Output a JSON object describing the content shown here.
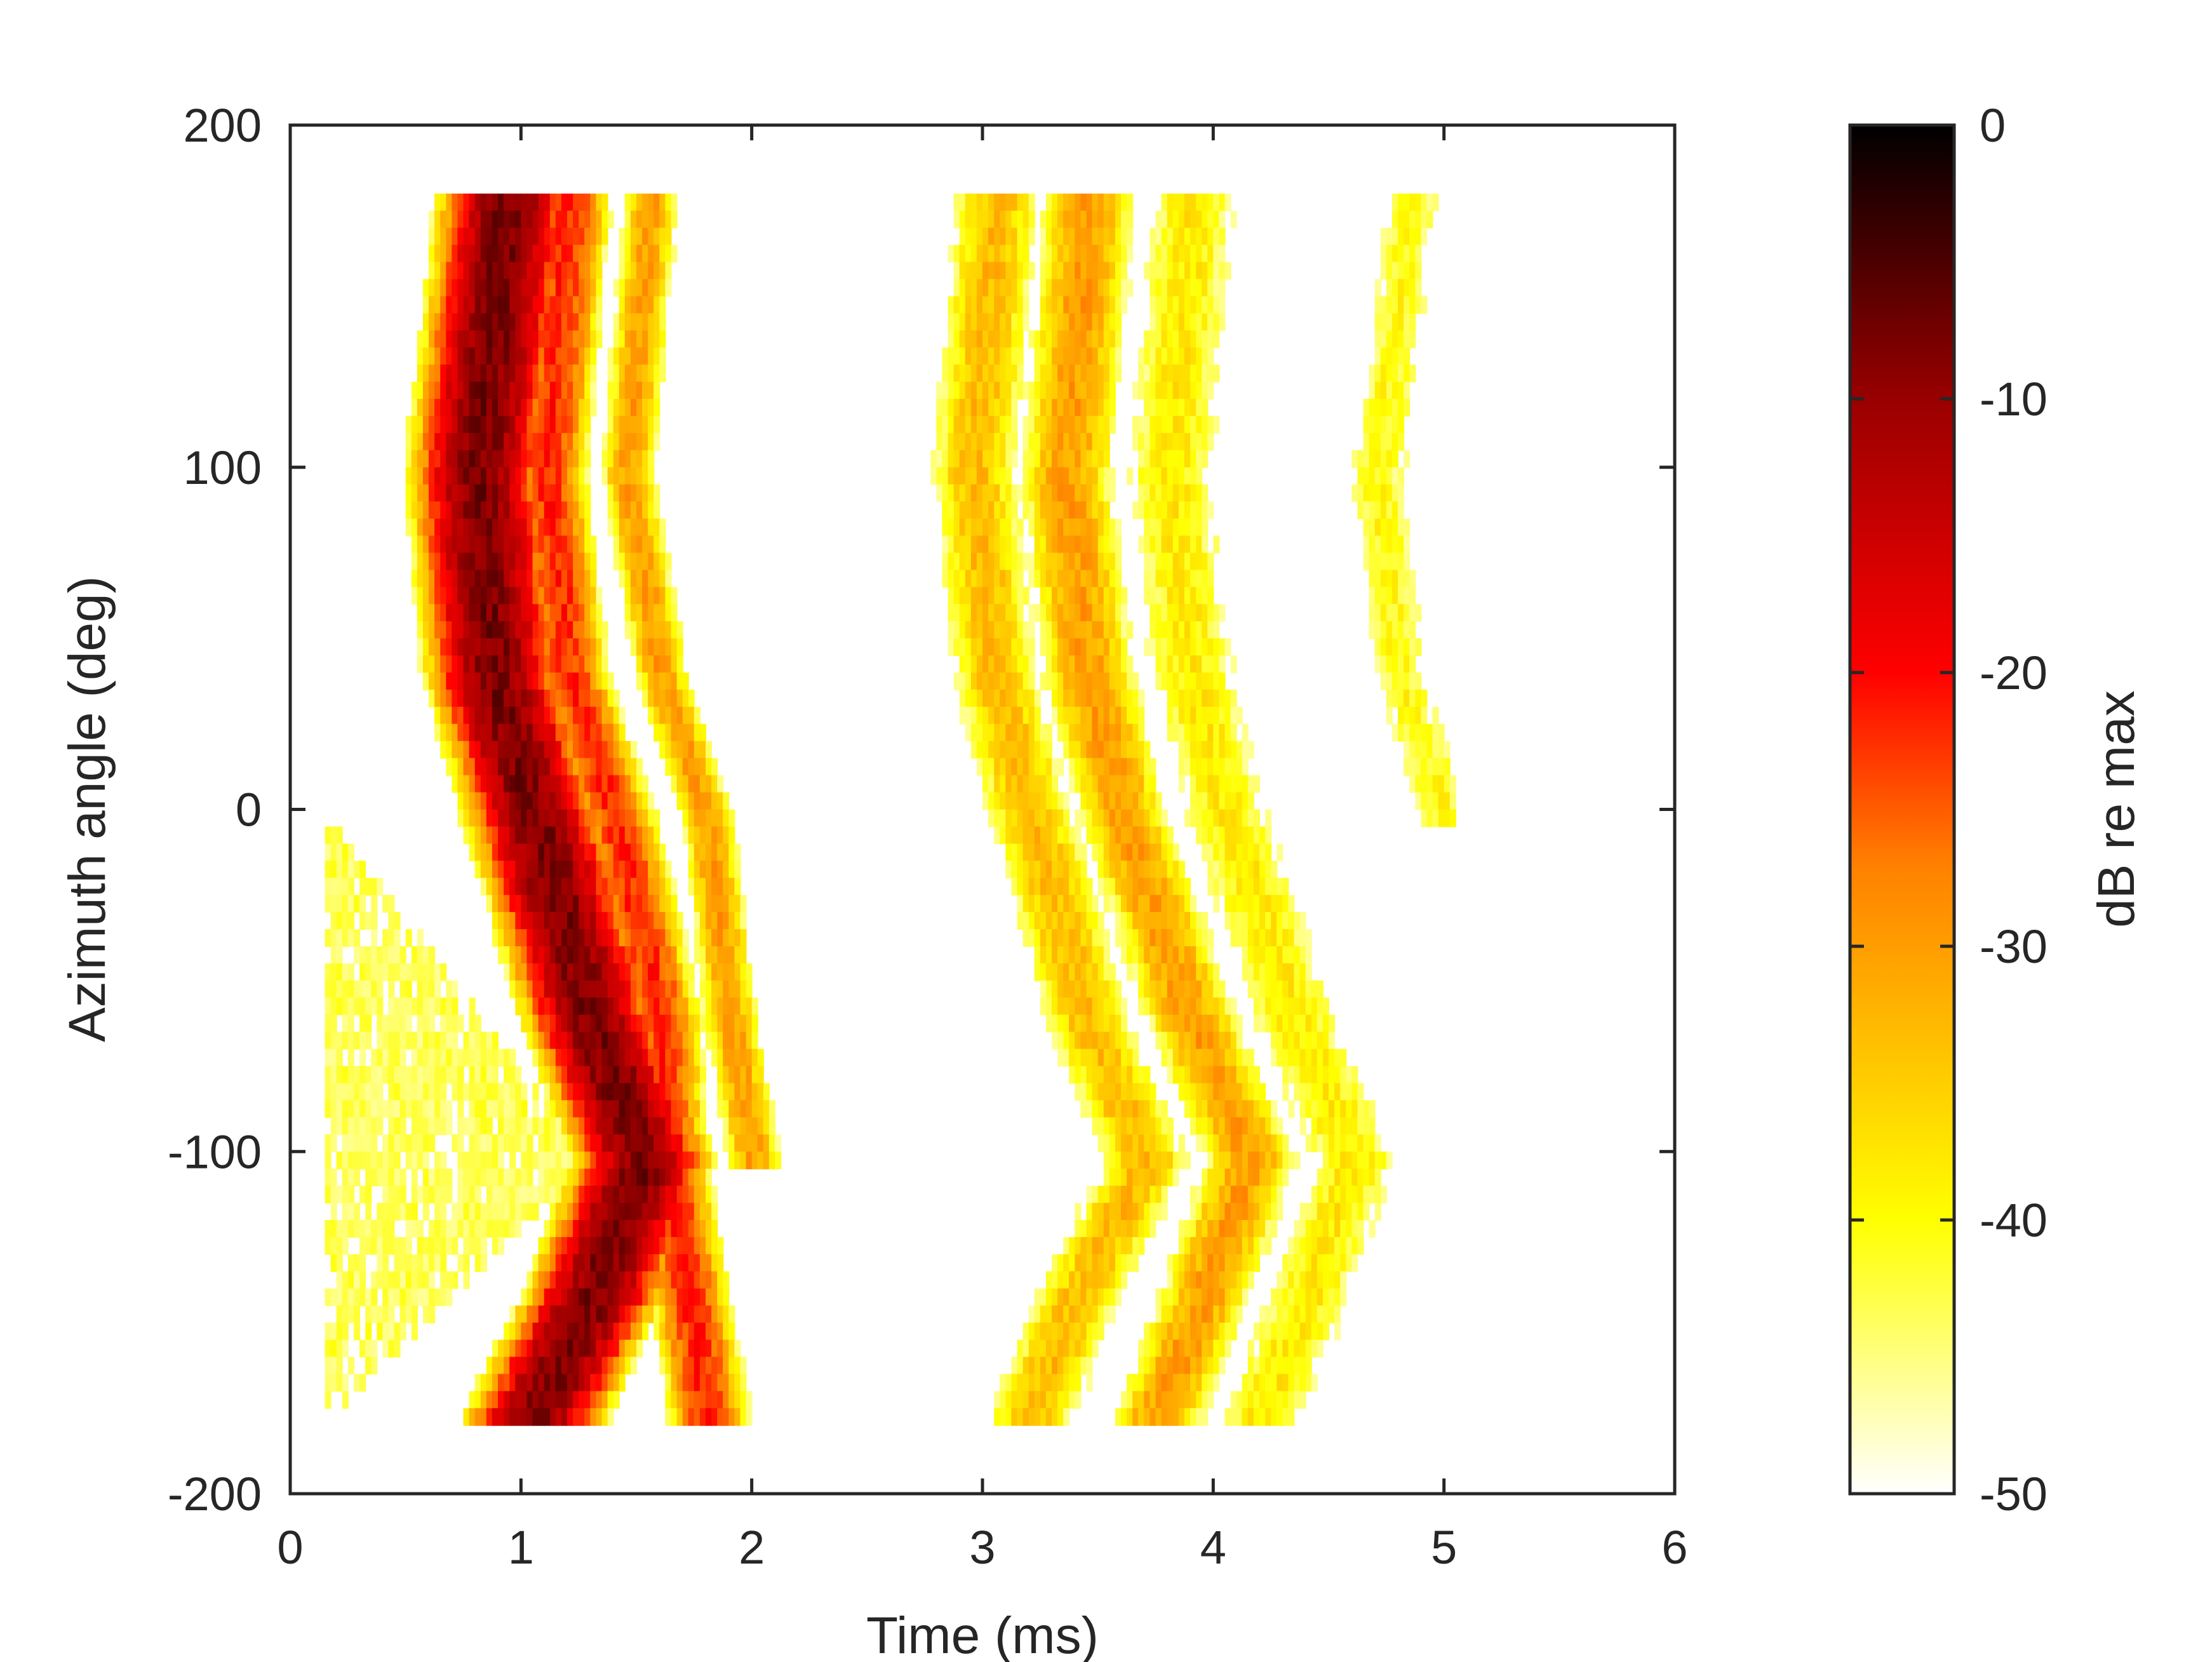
{
  "chart_data": {
    "type": "heatmap",
    "title": "",
    "xlabel": "Time (ms)",
    "ylabel": "Azimuth angle (deg)",
    "xlim": [
      0,
      6
    ],
    "ylim": [
      -200,
      200
    ],
    "xticks": [
      0,
      1,
      2,
      3,
      4,
      5,
      6
    ],
    "yticks": [
      -200,
      -100,
      0,
      100,
      200
    ],
    "xtick_labels": [
      "0",
      "1",
      "2",
      "3",
      "4",
      "5",
      "6"
    ],
    "ytick_labels": [
      "-200",
      "-100",
      "0",
      "100",
      "200"
    ],
    "grid": false,
    "data_extent": {
      "time_ms": [
        0.15,
        5.05
      ],
      "azimuth_deg": [
        -175,
        180
      ]
    },
    "colorbar": {
      "label": "dB re max",
      "range": [
        -50,
        0
      ],
      "ticks": [
        0,
        -10,
        -20,
        -30,
        -40,
        -50
      ],
      "tick_labels": [
        "0",
        "-10",
        "-20",
        "-30",
        "-40",
        "-50"
      ],
      "colormap": "hot",
      "stops": [
        {
          "value": -50,
          "color": "#ffffff"
        },
        {
          "value": -40,
          "color": "#ffff00"
        },
        {
          "value": -27,
          "color": "#ff8000"
        },
        {
          "value": -20,
          "color": "#ff0000"
        },
        {
          "value": -10,
          "color": "#990000"
        },
        {
          "value": 0,
          "color": "#000000"
        }
      ]
    },
    "features": [
      {
        "name": "direct wavefront",
        "points": [
          [
            0.93,
            180
          ],
          [
            0.8,
            100
          ],
          [
            0.88,
            40
          ],
          [
            1.05,
            0
          ],
          [
            1.3,
            -60
          ],
          [
            1.52,
            -100
          ],
          [
            1.3,
            -140
          ],
          [
            1.05,
            -175
          ]
        ],
        "level_db": -8,
        "width_ms": 0.13
      },
      {
        "name": "second arrival",
        "points": [
          [
            1.2,
            180
          ],
          [
            1.1,
            100
          ],
          [
            1.2,
            40
          ],
          [
            1.4,
            0
          ],
          [
            1.6,
            -60
          ],
          [
            1.62,
            -100
          ],
          [
            1.72,
            -140
          ],
          [
            1.8,
            -175
          ]
        ],
        "level_db": -22,
        "width_ms": 0.09
      },
      {
        "name": "third arrival",
        "points": [
          [
            1.55,
            180
          ],
          [
            1.45,
            100
          ],
          [
            1.6,
            40
          ],
          [
            1.8,
            0
          ],
          [
            1.9,
            -60
          ],
          [
            2.0,
            -100
          ]
        ],
        "level_db": -30,
        "width_ms": 0.07
      },
      {
        "name": "late arrival 1",
        "points": [
          [
            3.05,
            180
          ],
          [
            2.95,
            100
          ],
          [
            3.05,
            40
          ],
          [
            3.2,
            0
          ],
          [
            3.45,
            -60
          ],
          [
            3.7,
            -100
          ],
          [
            3.4,
            -140
          ],
          [
            3.2,
            -175
          ]
        ],
        "level_db": -33,
        "width_ms": 0.12
      },
      {
        "name": "late arrival 2",
        "points": [
          [
            3.45,
            180
          ],
          [
            3.35,
            100
          ],
          [
            3.45,
            40
          ],
          [
            3.6,
            0
          ],
          [
            3.9,
            -60
          ],
          [
            4.15,
            -100
          ],
          [
            3.95,
            -140
          ],
          [
            3.75,
            -175
          ]
        ],
        "level_db": -30,
        "width_ms": 0.12
      },
      {
        "name": "late arrival 3",
        "points": [
          [
            3.9,
            180
          ],
          [
            3.8,
            100
          ],
          [
            3.9,
            40
          ],
          [
            4.05,
            0
          ],
          [
            4.35,
            -60
          ],
          [
            4.6,
            -100
          ],
          [
            4.4,
            -140
          ],
          [
            4.2,
            -175
          ]
        ],
        "level_db": -38,
        "width_ms": 0.14
      },
      {
        "name": "late arrival 4",
        "points": [
          [
            4.85,
            180
          ],
          [
            4.7,
            100
          ],
          [
            4.8,
            40
          ],
          [
            5.0,
            0
          ]
        ],
        "level_db": -40,
        "width_ms": 0.1
      },
      {
        "name": "low-level region",
        "points": [
          [
            0.15,
            -175
          ],
          [
            0.15,
            0
          ],
          [
            1.3,
            -100
          ]
        ],
        "level_db": -45,
        "width_ms": 0.0
      }
    ]
  }
}
